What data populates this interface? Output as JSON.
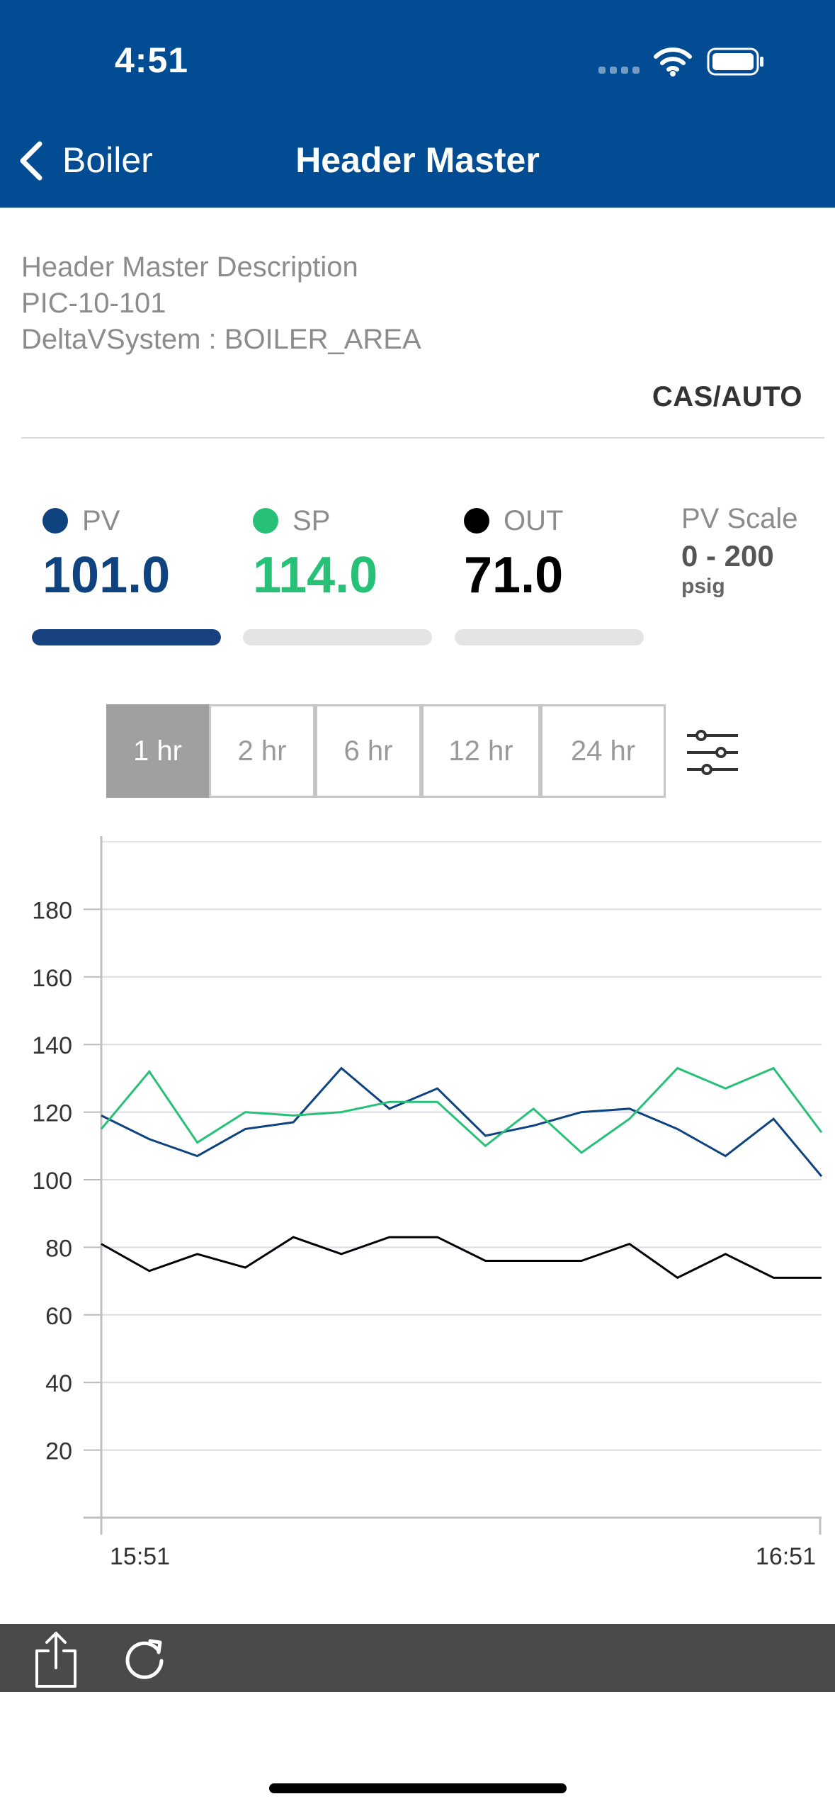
{
  "status_bar": {
    "time": "4:51"
  },
  "nav": {
    "back_label": "Boiler",
    "title": "Header Master"
  },
  "info": {
    "description": "Header Master Description",
    "tag": "PIC-10-101",
    "system": "DeltaVSystem : BOILER_AREA",
    "mode": "CAS/AUTO"
  },
  "metrics": [
    {
      "label": "PV",
      "value": "101.0",
      "color": "#0f4380"
    },
    {
      "label": "SP",
      "value": "114.0",
      "color": "#27c077"
    },
    {
      "label": "OUT",
      "value": "71.0",
      "color": "#000000"
    }
  ],
  "pv_scale": {
    "title": "PV Scale",
    "range": "0 - 200",
    "unit": "psig"
  },
  "bars": {
    "active_index": 0
  },
  "ranges": [
    "1 hr",
    "2 hr",
    "6 hr",
    "12 hr",
    "24 hr"
  ],
  "selected_range": "1 hr",
  "icons": {
    "back": "chevron-left-icon",
    "filter": "sliders-icon",
    "share": "share-icon",
    "refresh": "refresh-icon"
  },
  "chart_data": {
    "type": "line",
    "x_start_label": "15:51",
    "x_end_label": "16:51",
    "x_minutes": [
      0,
      4,
      8,
      12,
      16,
      20,
      24,
      28,
      32,
      36,
      40,
      44,
      48,
      52,
      56,
      60
    ],
    "yticks": [
      20,
      40,
      60,
      80,
      100,
      120,
      140,
      160,
      180
    ],
    "ylim": [
      0,
      200
    ],
    "grid": true,
    "series": [
      {
        "name": "PV",
        "color": "#0f4380",
        "values": [
          119,
          112,
          107,
          115,
          117,
          133,
          121,
          127,
          113,
          116,
          120,
          121,
          115,
          107,
          118,
          101
        ]
      },
      {
        "name": "SP",
        "color": "#27c077",
        "values": [
          115,
          132,
          111,
          120,
          119,
          120,
          123,
          123,
          110,
          121,
          108,
          118,
          133,
          127,
          133,
          114
        ]
      },
      {
        "name": "OUT",
        "color": "#000000",
        "values": [
          81,
          73,
          78,
          74,
          83,
          78,
          83,
          83,
          76,
          76,
          76,
          81,
          71,
          78,
          71,
          71
        ]
      }
    ]
  }
}
